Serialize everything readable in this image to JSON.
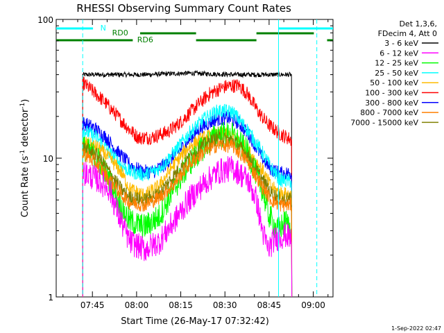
{
  "chart_data": {
    "type": "line",
    "title": "RHESSI Observing Summary Count Rates",
    "xlabel": "Start Time (26-May-17 07:32:42)",
    "ylabel_main": "Count Rate (s",
    "ylabel_sup": "-1",
    "ylabel_mid": " detector",
    "ylabel_end": ")",
    "y_scale": "log",
    "ylim": [
      1,
      100
    ],
    "y_ticks": [
      {
        "value": 1,
        "label": "1"
      },
      {
        "value": 10,
        "label": "10"
      },
      {
        "value": 100,
        "label": "100"
      }
    ],
    "xlim_minutes": [
      0,
      94
    ],
    "x_ticks": [
      {
        "minute": 12.3,
        "label": "07:45"
      },
      {
        "minute": 27.3,
        "label": "08:00"
      },
      {
        "minute": 42.3,
        "label": "08:15"
      },
      {
        "minute": 57.3,
        "label": "08:30"
      },
      {
        "minute": 72.3,
        "label": "08:45"
      },
      {
        "minute": 87.3,
        "label": "09:00"
      }
    ],
    "legend_header": [
      "Det 1,3,6,",
      "FDecim 4, Att 0"
    ],
    "series": [
      {
        "name": "3 - 6 keV",
        "color": "#000000",
        "points": [
          [
            9,
            40
          ],
          [
            30,
            40
          ],
          [
            45,
            41
          ],
          [
            60,
            40
          ],
          [
            75,
            40
          ],
          [
            80,
            40
          ]
        ]
      },
      {
        "name": "6 - 12 keV",
        "color": "#ff00ff",
        "points": [
          [
            9,
            8
          ],
          [
            14,
            7
          ],
          [
            18,
            6
          ],
          [
            22,
            3.5
          ],
          [
            25,
            2.5
          ],
          [
            30,
            2.2
          ],
          [
            35,
            2.5
          ],
          [
            40,
            3.5
          ],
          [
            45,
            5
          ],
          [
            50,
            6.5
          ],
          [
            55,
            8
          ],
          [
            60,
            8.5
          ],
          [
            65,
            7
          ],
          [
            68,
            5
          ],
          [
            70,
            3
          ],
          [
            72,
            2.2
          ],
          [
            74,
            2.6
          ],
          [
            78,
            2.8
          ],
          [
            80,
            2.6
          ]
        ]
      },
      {
        "name": "12 - 25 keV",
        "color": "#00ff00",
        "points": [
          [
            9,
            12
          ],
          [
            14,
            10
          ],
          [
            18,
            7
          ],
          [
            22,
            4.5
          ],
          [
            25,
            3.5
          ],
          [
            30,
            3.2
          ],
          [
            35,
            3.8
          ],
          [
            40,
            6
          ],
          [
            45,
            9
          ],
          [
            50,
            12
          ],
          [
            55,
            15
          ],
          [
            60,
            14.5
          ],
          [
            65,
            11
          ],
          [
            70,
            6
          ],
          [
            72,
            4
          ],
          [
            75,
            3
          ],
          [
            78,
            3.5
          ],
          [
            80,
            3
          ]
        ]
      },
      {
        "name": "25 - 50 keV",
        "color": "#00ffff",
        "points": [
          [
            9,
            16
          ],
          [
            14,
            14
          ],
          [
            18,
            11
          ],
          [
            22,
            9
          ],
          [
            25,
            8
          ],
          [
            30,
            7.6
          ],
          [
            35,
            8.4
          ],
          [
            40,
            11
          ],
          [
            45,
            15
          ],
          [
            50,
            19
          ],
          [
            55,
            22
          ],
          [
            60,
            21.5
          ],
          [
            65,
            16
          ],
          [
            70,
            11
          ],
          [
            73,
            8.5
          ],
          [
            76,
            7
          ],
          [
            80,
            6.8
          ]
        ]
      },
      {
        "name": "50 - 100 keV",
        "color": "#ffbb00",
        "points": [
          [
            9,
            13
          ],
          [
            14,
            12
          ],
          [
            18,
            10
          ],
          [
            22,
            8
          ],
          [
            25,
            6
          ],
          [
            30,
            5.4
          ],
          [
            35,
            6.3
          ],
          [
            40,
            9
          ],
          [
            45,
            12
          ],
          [
            50,
            14
          ],
          [
            55,
            15
          ],
          [
            60,
            14.5
          ],
          [
            65,
            11.5
          ],
          [
            70,
            8.2
          ],
          [
            73,
            6.2
          ],
          [
            76,
            5.6
          ],
          [
            80,
            5.4
          ]
        ]
      },
      {
        "name": "100 - 300 keV",
        "color": "#ff0000",
        "points": [
          [
            9,
            35
          ],
          [
            12,
            31
          ],
          [
            16,
            26
          ],
          [
            20,
            21
          ],
          [
            25,
            16
          ],
          [
            28,
            14
          ],
          [
            33,
            14.2
          ],
          [
            38,
            15.5
          ],
          [
            42,
            18
          ],
          [
            47,
            23
          ],
          [
            52,
            29
          ],
          [
            56,
            32
          ],
          [
            58,
            33
          ],
          [
            62,
            33.5
          ],
          [
            65,
            29
          ],
          [
            69,
            21
          ],
          [
            72,
            17.5
          ],
          [
            76,
            15
          ],
          [
            80,
            13.5
          ]
        ]
      },
      {
        "name": "300 - 800 keV",
        "color": "#0000ff",
        "points": [
          [
            9,
            18
          ],
          [
            13,
            16.5
          ],
          [
            17,
            14
          ],
          [
            21,
            11
          ],
          [
            25,
            9
          ],
          [
            29,
            8
          ],
          [
            33,
            8
          ],
          [
            37,
            9
          ],
          [
            41,
            10.8
          ],
          [
            45,
            13.5
          ],
          [
            49,
            16.5
          ],
          [
            54,
            19
          ],
          [
            58,
            19.5
          ],
          [
            62,
            18
          ],
          [
            66,
            14.2
          ],
          [
            70,
            10
          ],
          [
            73,
            8.3
          ],
          [
            76,
            7.8
          ],
          [
            80,
            7.8
          ]
        ]
      },
      {
        "name": "800 - 7000 keV",
        "color": "#ff7f00",
        "points": [
          [
            9,
            11
          ],
          [
            14,
            9
          ],
          [
            18,
            7
          ],
          [
            22,
            5.5
          ],
          [
            25,
            4.8
          ],
          [
            30,
            4.6
          ],
          [
            35,
            5.2
          ],
          [
            40,
            6.5
          ],
          [
            45,
            9
          ],
          [
            50,
            11
          ],
          [
            55,
            12.5
          ],
          [
            60,
            12.2
          ],
          [
            65,
            9.5
          ],
          [
            70,
            6.2
          ],
          [
            73,
            5
          ],
          [
            76,
            4.6
          ],
          [
            80,
            4.6
          ]
        ]
      },
      {
        "name": "7000 - 15000 keV",
        "color": "#7f7f00",
        "points": [
          [
            9,
            12
          ],
          [
            14,
            10.5
          ],
          [
            18,
            8
          ],
          [
            22,
            6
          ],
          [
            25,
            5.2
          ],
          [
            30,
            5
          ],
          [
            35,
            5.6
          ],
          [
            40,
            7.5
          ],
          [
            45,
            10
          ],
          [
            50,
            12.5
          ],
          [
            55,
            14
          ],
          [
            60,
            13.5
          ],
          [
            65,
            10.5
          ],
          [
            70,
            7
          ],
          [
            73,
            5.6
          ],
          [
            76,
            5.1
          ],
          [
            80,
            5
          ]
        ]
      }
    ],
    "annotations": {
      "n_label": "N",
      "rd0_label": "RD0",
      "rd6_label": "RD6"
    },
    "date_stamp": "1-Sep-2022 02:47"
  }
}
